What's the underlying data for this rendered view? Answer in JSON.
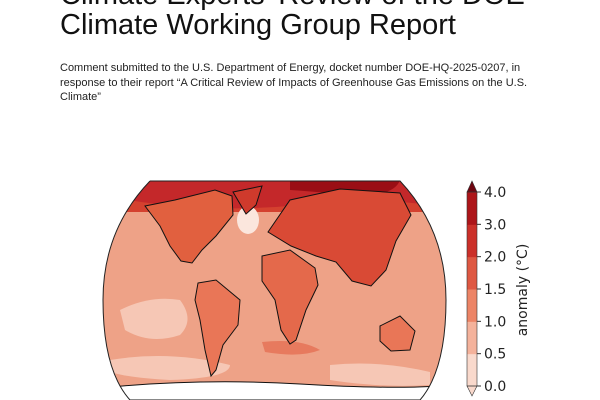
{
  "document": {
    "title_lines": [
      "Climate Experts' Review of the DOE",
      "Climate Working Group Report"
    ],
    "subtitle": "Comment submitted to the U.S. Department of Energy, docket number DOE-HQ-2025-0207, in response to their report “A Critical Review of Impacts of Greenhouse Gas Emissions on the U.S. Climate”"
  },
  "figure": {
    "type": "world temperature anomaly map",
    "colorbar": {
      "label": "anomaly (°C)",
      "ticks": [
        "0.0",
        "0.5",
        "1.0",
        "1.5",
        "2.0",
        "3.0",
        "4.0"
      ],
      "colors": [
        "#f9d9cc",
        "#f4b29b",
        "#ec8466",
        "#de5842",
        "#cb3029",
        "#ad1519",
        "#6e0510"
      ]
    }
  }
}
